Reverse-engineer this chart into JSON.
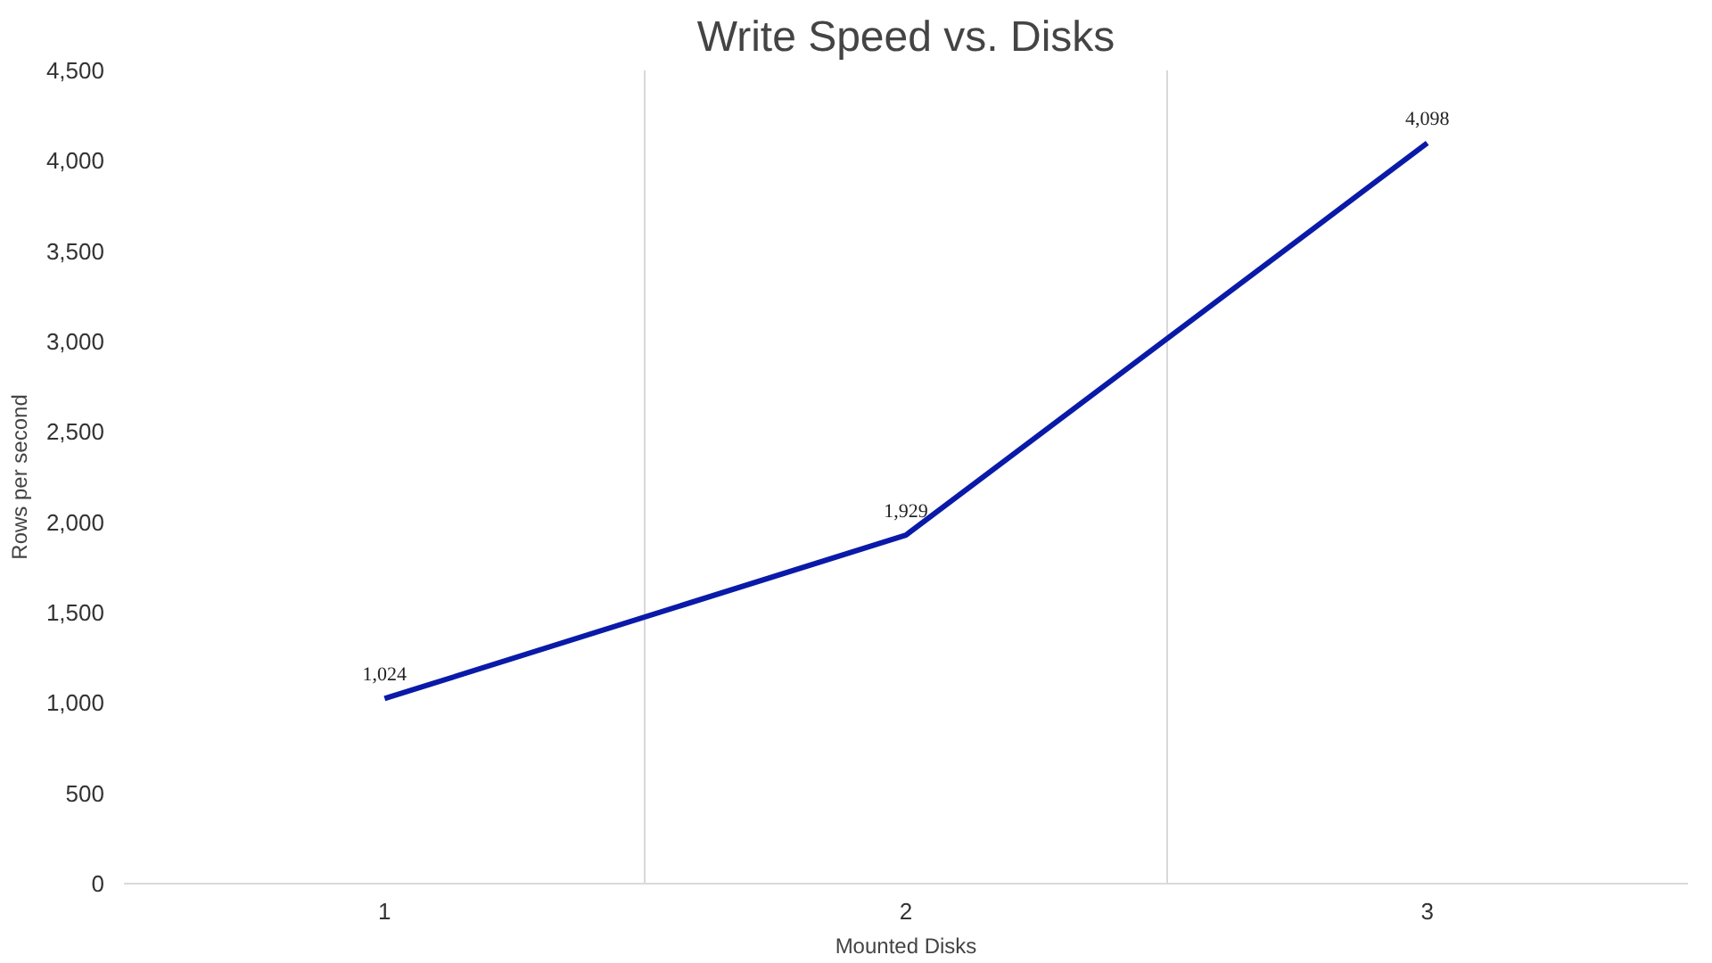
{
  "chart_data": {
    "type": "line",
    "title": "Write Speed vs. Disks",
    "xlabel": "Mounted Disks",
    "ylabel": "Rows per second",
    "categories": [
      "1",
      "2",
      "3"
    ],
    "series": [
      {
        "color": "#0a1aa8",
        "values": [
          1024,
          1929,
          4098
        ],
        "value_labels": [
          "1,024",
          "1,929",
          "4,098"
        ]
      }
    ],
    "ylim": [
      0,
      4500
    ],
    "yticks": [
      0,
      500,
      {
        "value": 1000,
        "label": "1,000"
      },
      {
        "value": 1500,
        "label": "1,500"
      },
      {
        "value": 2000,
        "label": "2,000"
      },
      {
        "value": 2500,
        "label": "2,500"
      },
      {
        "value": 3000,
        "label": "3,000"
      },
      {
        "value": 3500,
        "label": "3,500"
      },
      {
        "value": 4000,
        "label": "4,000"
      },
      {
        "value": 4500,
        "label": "4,500"
      }
    ],
    "grid": "x",
    "marker": "none",
    "line_style": "solid"
  }
}
